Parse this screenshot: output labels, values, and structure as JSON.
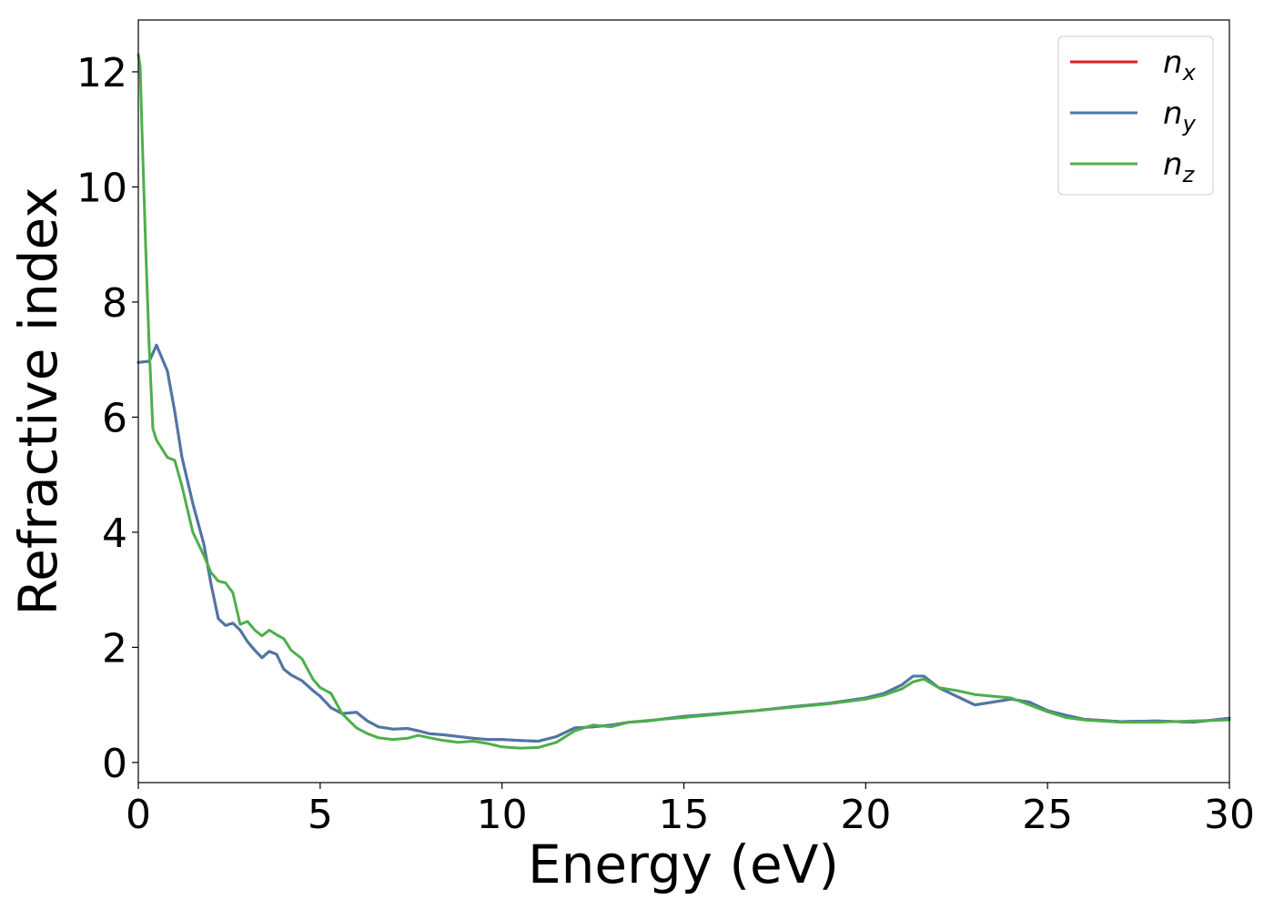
{
  "chart_data": {
    "type": "line",
    "title": "",
    "xlabel": "Energy (eV)",
    "ylabel": "Refractive index",
    "xlim": [
      0,
      30
    ],
    "ylim": [
      -0.35,
      12.9
    ],
    "xticks": [
      0,
      5,
      10,
      15,
      20,
      25,
      30
    ],
    "yticks": [
      0,
      2,
      4,
      6,
      8,
      10,
      12
    ],
    "grid": false,
    "legend_position": "top-right",
    "series": [
      {
        "name": "n",
        "subscript": "x",
        "color": "#e41a1c",
        "x": [
          0,
          0.3,
          0.5,
          0.6,
          0.8,
          1.0,
          1.2,
          1.5,
          1.8,
          2.0,
          2.2,
          2.4,
          2.6,
          2.8,
          3.0,
          3.2,
          3.4,
          3.6,
          3.8,
          4.0,
          4.2,
          4.5,
          4.8,
          5.0,
          5.3,
          5.6,
          6.0,
          6.3,
          6.6,
          7.0,
          7.4,
          7.7,
          8.0,
          8.4,
          8.8,
          9.2,
          9.6,
          10.0,
          10.5,
          11.0,
          11.5,
          12.0,
          12.5,
          13.0,
          13.5,
          14.0,
          15.0,
          16.0,
          17.0,
          18.0,
          19.0,
          20.0,
          20.5,
          21.0,
          21.3,
          21.6,
          22.0,
          22.5,
          23.0,
          23.5,
          24.0,
          24.5,
          25.0,
          25.5,
          26.0,
          27.0,
          28.0,
          29.0,
          30.0
        ],
        "y": [
          6.95,
          6.97,
          7.25,
          7.1,
          6.8,
          6.1,
          5.3,
          4.5,
          3.8,
          3.1,
          2.5,
          2.38,
          2.42,
          2.3,
          2.1,
          1.95,
          1.82,
          1.93,
          1.88,
          1.62,
          1.52,
          1.42,
          1.25,
          1.15,
          0.95,
          0.85,
          0.87,
          0.72,
          0.62,
          0.58,
          0.59,
          0.55,
          0.5,
          0.48,
          0.45,
          0.42,
          0.4,
          0.4,
          0.38,
          0.37,
          0.45,
          0.6,
          0.62,
          0.65,
          0.7,
          0.72,
          0.8,
          0.85,
          0.9,
          0.97,
          1.03,
          1.12,
          1.2,
          1.35,
          1.5,
          1.5,
          1.3,
          1.15,
          1.0,
          1.05,
          1.1,
          1.05,
          0.9,
          0.82,
          0.75,
          0.71,
          0.72,
          0.7,
          0.77
        ]
      },
      {
        "name": "n",
        "subscript": "y",
        "color": "#4a78a8",
        "x": [
          0,
          0.3,
          0.5,
          0.6,
          0.8,
          1.0,
          1.2,
          1.5,
          1.8,
          2.0,
          2.2,
          2.4,
          2.6,
          2.8,
          3.0,
          3.2,
          3.4,
          3.6,
          3.8,
          4.0,
          4.2,
          4.5,
          4.8,
          5.0,
          5.3,
          5.6,
          6.0,
          6.3,
          6.6,
          7.0,
          7.4,
          7.7,
          8.0,
          8.4,
          8.8,
          9.2,
          9.6,
          10.0,
          10.5,
          11.0,
          11.5,
          12.0,
          12.5,
          13.0,
          13.5,
          14.0,
          15.0,
          16.0,
          17.0,
          18.0,
          19.0,
          20.0,
          20.5,
          21.0,
          21.3,
          21.6,
          22.0,
          22.5,
          23.0,
          23.5,
          24.0,
          24.5,
          25.0,
          25.5,
          26.0,
          27.0,
          28.0,
          29.0,
          30.0
        ],
        "y": [
          6.95,
          6.97,
          7.25,
          7.1,
          6.8,
          6.1,
          5.3,
          4.5,
          3.8,
          3.1,
          2.5,
          2.38,
          2.42,
          2.3,
          2.1,
          1.95,
          1.82,
          1.93,
          1.88,
          1.62,
          1.52,
          1.42,
          1.25,
          1.15,
          0.95,
          0.85,
          0.87,
          0.72,
          0.62,
          0.58,
          0.59,
          0.55,
          0.5,
          0.48,
          0.45,
          0.42,
          0.4,
          0.4,
          0.38,
          0.37,
          0.45,
          0.6,
          0.62,
          0.65,
          0.7,
          0.72,
          0.8,
          0.85,
          0.9,
          0.97,
          1.03,
          1.12,
          1.2,
          1.35,
          1.5,
          1.5,
          1.3,
          1.15,
          1.0,
          1.05,
          1.1,
          1.05,
          0.9,
          0.82,
          0.75,
          0.71,
          0.72,
          0.7,
          0.77
        ]
      },
      {
        "name": "n",
        "subscript": "z",
        "color": "#4daf4a",
        "x": [
          0,
          0.05,
          0.1,
          0.2,
          0.3,
          0.4,
          0.5,
          0.6,
          0.8,
          1.0,
          1.2,
          1.5,
          1.8,
          2.0,
          2.2,
          2.4,
          2.6,
          2.8,
          3.0,
          3.2,
          3.4,
          3.6,
          3.8,
          4.0,
          4.2,
          4.5,
          4.8,
          5.0,
          5.3,
          5.6,
          6.0,
          6.3,
          6.6,
          7.0,
          7.4,
          7.7,
          8.0,
          8.4,
          8.8,
          9.2,
          9.6,
          10.0,
          10.5,
          11.0,
          11.5,
          12.0,
          12.5,
          13.0,
          13.5,
          14.0,
          15.0,
          16.0,
          17.0,
          18.0,
          19.0,
          20.0,
          20.5,
          21.0,
          21.3,
          21.6,
          22.0,
          22.5,
          23.0,
          23.5,
          24.0,
          24.5,
          25.0,
          25.5,
          26.0,
          27.0,
          28.0,
          29.0,
          30.0
        ],
        "y": [
          12.3,
          12.1,
          11.0,
          9.0,
          7.2,
          5.8,
          5.6,
          5.5,
          5.3,
          5.25,
          4.8,
          4.0,
          3.6,
          3.3,
          3.15,
          3.12,
          2.95,
          2.4,
          2.45,
          2.3,
          2.2,
          2.3,
          2.22,
          2.15,
          1.95,
          1.8,
          1.45,
          1.3,
          1.2,
          0.85,
          0.6,
          0.5,
          0.43,
          0.4,
          0.42,
          0.47,
          0.43,
          0.38,
          0.35,
          0.37,
          0.33,
          0.27,
          0.25,
          0.26,
          0.35,
          0.55,
          0.65,
          0.62,
          0.7,
          0.73,
          0.78,
          0.84,
          0.9,
          0.96,
          1.02,
          1.1,
          1.17,
          1.28,
          1.4,
          1.45,
          1.3,
          1.25,
          1.18,
          1.15,
          1.12,
          1.0,
          0.88,
          0.78,
          0.74,
          0.7,
          0.7,
          0.72,
          0.74
        ]
      }
    ]
  }
}
